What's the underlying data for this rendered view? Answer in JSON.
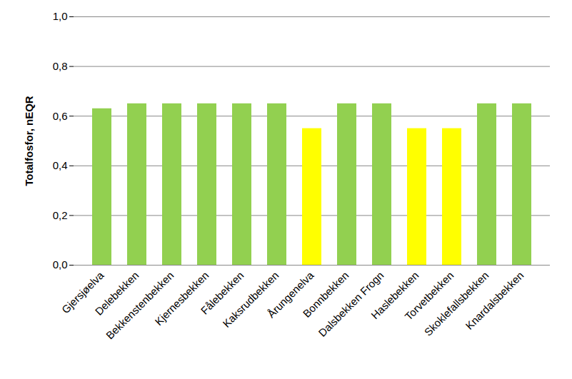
{
  "chart_data": {
    "type": "bar",
    "y_label": "Totalfosfor, nEQR",
    "categories": [
      "Gjersjøelva",
      "Delebekken",
      "Bekkenstenbekken",
      "Kjernesbekken",
      "Fålebekken",
      "Kaksrudbekken",
      "Årungenelva",
      "Bonnbekken",
      "Dalsbekken Frogn",
      "Haslebekken",
      "Torvetbekken",
      "Skoklefallsbekken",
      "Knardalsbekken"
    ],
    "values": [
      0.63,
      0.65,
      0.65,
      0.65,
      0.65,
      0.65,
      0.55,
      0.65,
      0.65,
      0.55,
      0.55,
      0.65,
      0.65
    ],
    "colors": [
      "#92d050",
      "#92d050",
      "#92d050",
      "#92d050",
      "#92d050",
      "#92d050",
      "#ffff00",
      "#92d050",
      "#92d050",
      "#ffff00",
      "#ffff00",
      "#92d050",
      "#92d050"
    ],
    "ylim": [
      0,
      1
    ],
    "yticks": [
      {
        "value": 0,
        "label": "0,0"
      },
      {
        "value": 0.2,
        "label": "0,2"
      },
      {
        "value": 0.4,
        "label": "0,4"
      },
      {
        "value": 0.6,
        "label": "0,6"
      },
      {
        "value": 0.8,
        "label": "0,8"
      },
      {
        "value": 1,
        "label": "1,0"
      }
    ],
    "grid": true
  }
}
